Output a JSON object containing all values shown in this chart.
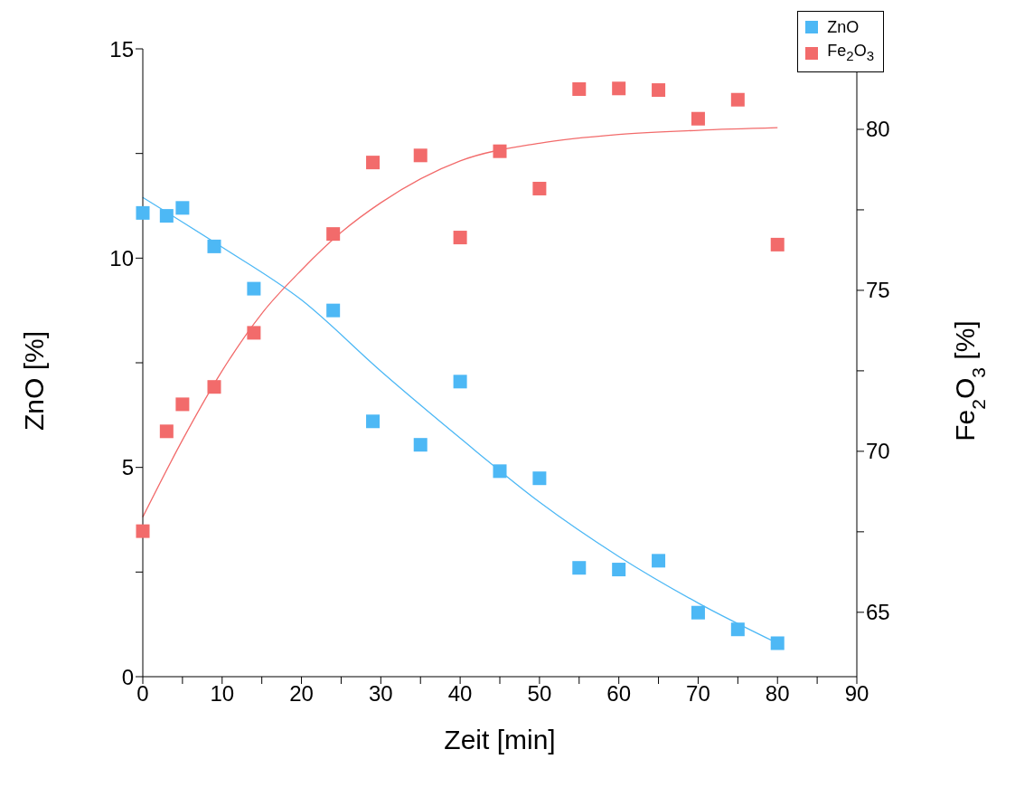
{
  "chart_data": {
    "type": "scatter",
    "xlabel": "Zeit [min]",
    "ylabel": "ZnO [%]",
    "y2label": "Fe$_{2}$O$_{3}$ [%]",
    "xlim": [
      0,
      90
    ],
    "xticks": [
      0,
      {
        "value": 5,
        "label": null
      },
      10,
      {
        "value": 15,
        "label": null
      },
      20,
      {
        "value": 25,
        "label": null
      },
      30,
      {
        "value": 35,
        "label": null
      },
      40,
      {
        "value": 45,
        "label": null
      },
      50,
      {
        "value": 55,
        "label": null
      },
      60,
      {
        "value": 65,
        "label": null
      },
      70,
      {
        "value": 75,
        "label": null
      },
      80,
      {
        "value": 85,
        "label": null
      },
      90
    ],
    "ylim": [
      0,
      15
    ],
    "yticks": [
      0,
      {
        "value": 2.5,
        "label": null
      },
      5,
      {
        "value": 7.5,
        "label": null
      },
      10,
      {
        "value": 12.5,
        "label": null
      },
      15
    ],
    "y2lim": [
      63,
      82.5
    ],
    "y2ticks": [
      65,
      {
        "value": 67.5,
        "label": null
      },
      70,
      {
        "value": 72.5,
        "label": null
      },
      75,
      {
        "value": 77.5,
        "label": null
      },
      80,
      {
        "value": 82.5,
        "label": null
      }
    ],
    "grid": false,
    "legend": "top right",
    "marker": "square",
    "series": [
      {
        "name": "ZnO",
        "color": "#4db8f5",
        "x": [
          0,
          3,
          5,
          9,
          14,
          24,
          29,
          35,
          40,
          45,
          50,
          55,
          60,
          65,
          70,
          75,
          80
        ],
        "values": [
          11.08,
          11.01,
          11.2,
          10.28,
          9.27,
          8.75,
          6.1,
          5.54,
          7.05,
          4.91,
          4.74,
          2.6,
          2.56,
          2.77,
          1.53,
          1.13,
          0.8
        ]
      },
      {
        "name": "Fe$_{2}$O$_{3}$",
        "color": "#f26b6b",
        "axis": "y2",
        "x": [
          0,
          3,
          5,
          9,
          14,
          24,
          29,
          35,
          40,
          45,
          50,
          55,
          60,
          65,
          70,
          75,
          80
        ],
        "values": [
          67.52,
          70.62,
          71.46,
          72.0,
          73.68,
          76.75,
          78.97,
          79.19,
          76.64,
          79.32,
          78.16,
          81.25,
          81.27,
          81.22,
          80.33,
          80.92,
          76.42
        ]
      },
      {
        "type": "line",
        "color": "#4db8f5",
        "marker": "none",
        "x": [
          0,
          10,
          20,
          30,
          40,
          50,
          60,
          70,
          80
        ],
        "values": [
          11.45,
          10.26,
          9.0,
          7.3,
          5.7,
          4.17,
          2.87,
          1.76,
          0.8
        ]
      },
      {
        "type": "line",
        "color": "#f26b6b",
        "axis": "y2",
        "marker": "none",
        "x": [
          0,
          5,
          10,
          15,
          20,
          25,
          30,
          40,
          50,
          60,
          70,
          80
        ],
        "values": [
          67.96,
          70.35,
          72.5,
          74.28,
          75.63,
          76.8,
          77.72,
          79.02,
          79.57,
          79.84,
          79.97,
          80.05
        ]
      }
    ]
  }
}
